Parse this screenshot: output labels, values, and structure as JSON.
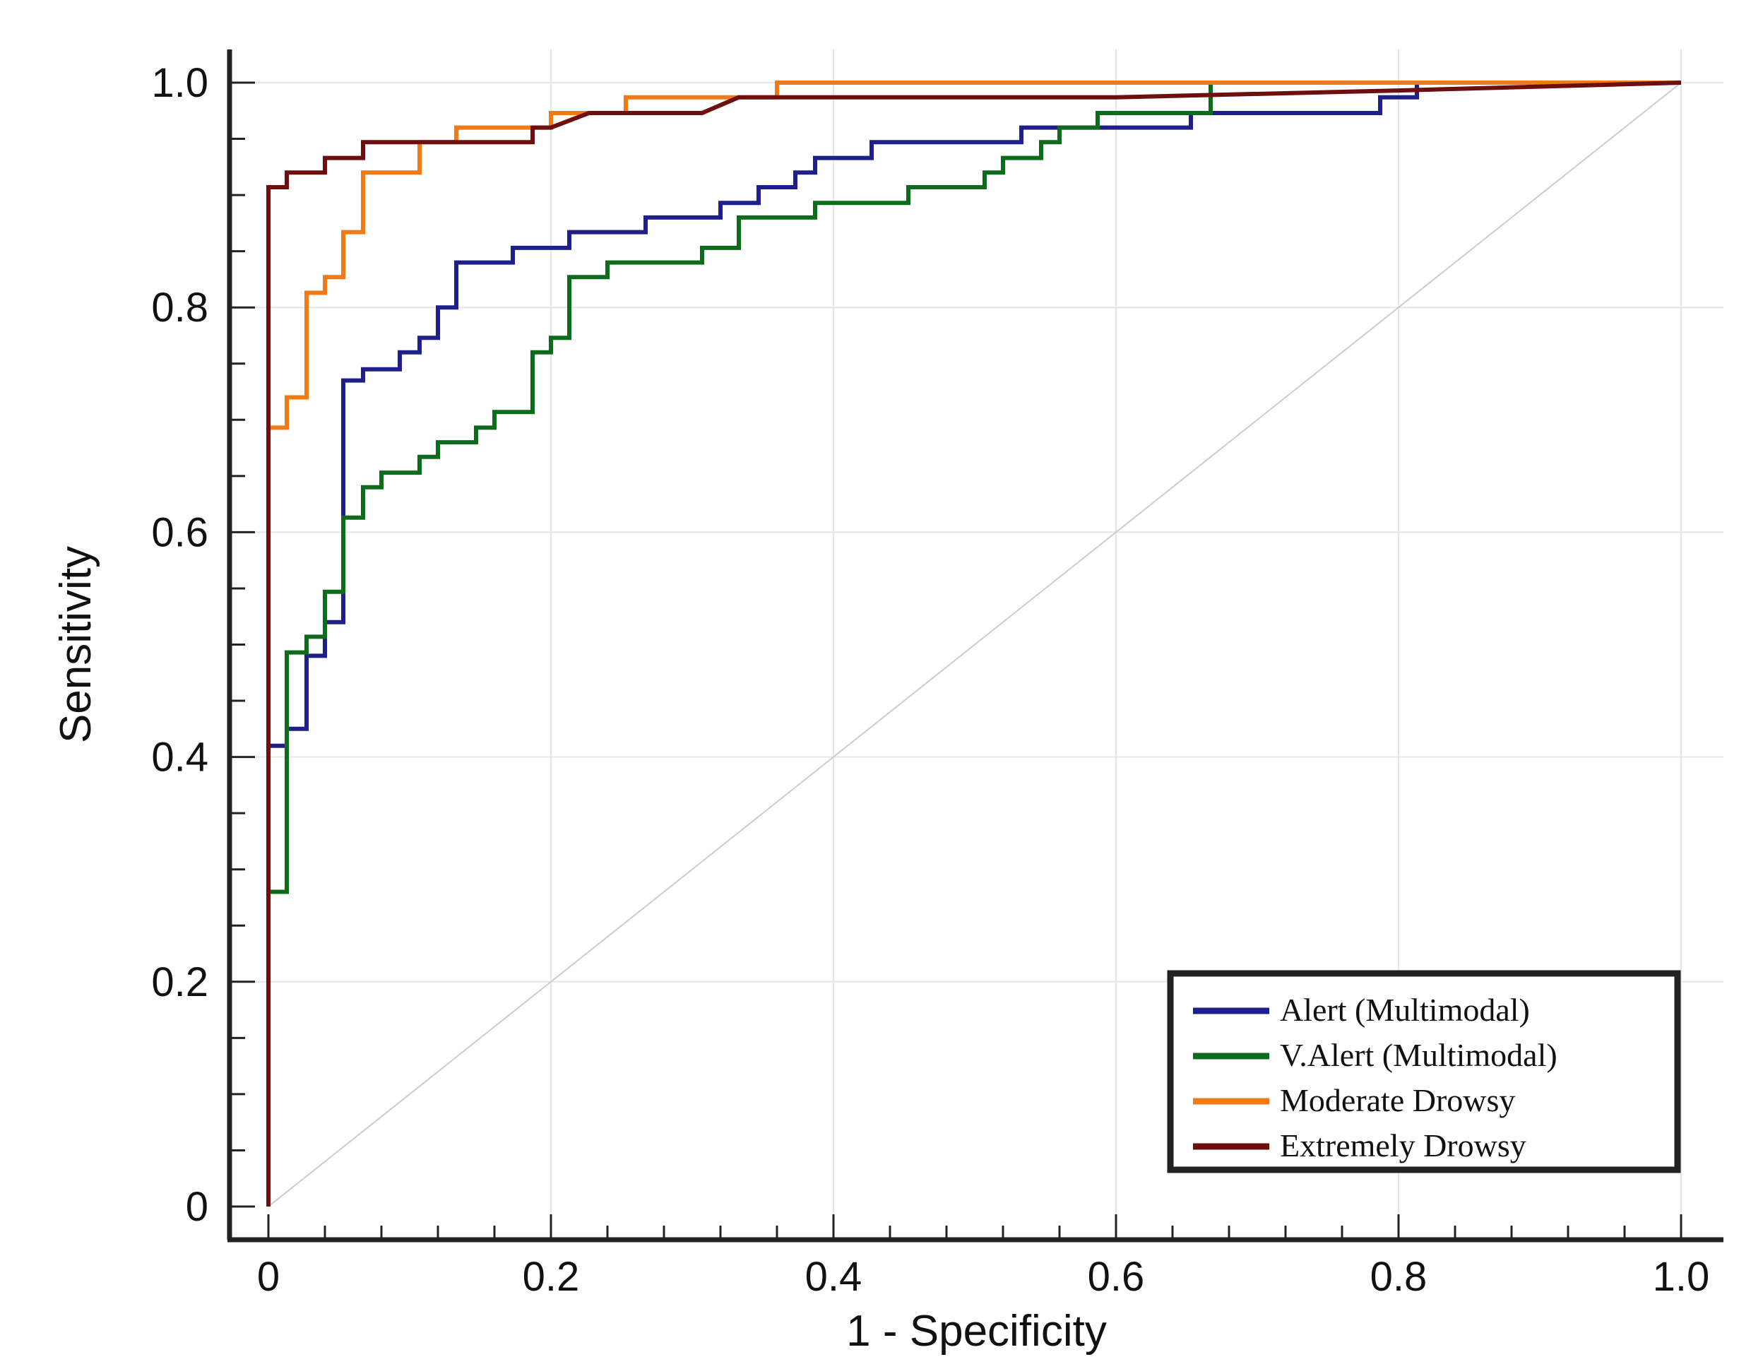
{
  "chart_data": {
    "type": "line",
    "title": "",
    "xlabel": "1 - Specificity",
    "ylabel": "Sensitivity",
    "xlim": [
      0,
      1
    ],
    "ylim": [
      0,
      1
    ],
    "grid": true,
    "x_ticks": [
      "0",
      "0.2",
      "0.4",
      "0.6",
      "0.8",
      "1.0"
    ],
    "y_ticks": [
      "0",
      "0.2",
      "0.4",
      "0.6",
      "0.8",
      "1.0"
    ],
    "legend_position": "bottom-right",
    "reference_line": {
      "name": "chance diagonal",
      "color": "#cccccc",
      "points": [
        [
          0,
          0
        ],
        [
          1,
          1
        ]
      ]
    },
    "series": [
      {
        "name": "Alert (Multimodal)",
        "color": "#1f1f8a",
        "points": [
          [
            0,
            0
          ],
          [
            0,
            0.41
          ],
          [
            0.013,
            0.41
          ],
          [
            0.013,
            0.425
          ],
          [
            0.027,
            0.425
          ],
          [
            0.027,
            0.49
          ],
          [
            0.04,
            0.49
          ],
          [
            0.04,
            0.505
          ],
          [
            0.04,
            0.52
          ],
          [
            0.053,
            0.52
          ],
          [
            0.053,
            0.735
          ],
          [
            0.067,
            0.735
          ],
          [
            0.067,
            0.745
          ],
          [
            0.093,
            0.745
          ],
          [
            0.093,
            0.76
          ],
          [
            0.107,
            0.76
          ],
          [
            0.107,
            0.773
          ],
          [
            0.12,
            0.773
          ],
          [
            0.12,
            0.8
          ],
          [
            0.133,
            0.8
          ],
          [
            0.133,
            0.84
          ],
          [
            0.173,
            0.84
          ],
          [
            0.173,
            0.853
          ],
          [
            0.213,
            0.853
          ],
          [
            0.213,
            0.867
          ],
          [
            0.267,
            0.867
          ],
          [
            0.267,
            0.88
          ],
          [
            0.32,
            0.88
          ],
          [
            0.32,
            0.893
          ],
          [
            0.347,
            0.893
          ],
          [
            0.347,
            0.907
          ],
          [
            0.373,
            0.907
          ],
          [
            0.373,
            0.92
          ],
          [
            0.387,
            0.92
          ],
          [
            0.387,
            0.933
          ],
          [
            0.427,
            0.933
          ],
          [
            0.427,
            0.947
          ],
          [
            0.533,
            0.947
          ],
          [
            0.533,
            0.96
          ],
          [
            0.653,
            0.96
          ],
          [
            0.653,
            0.973
          ],
          [
            0.787,
            0.973
          ],
          [
            0.787,
            0.987
          ],
          [
            0.813,
            0.987
          ],
          [
            0.813,
            1.0
          ],
          [
            1,
            1
          ]
        ]
      },
      {
        "name": "V.Alert (Multimodal)",
        "color": "#0e6b1e",
        "points": [
          [
            0,
            0
          ],
          [
            0,
            0.28
          ],
          [
            0.013,
            0.28
          ],
          [
            0.013,
            0.493
          ],
          [
            0.027,
            0.493
          ],
          [
            0.027,
            0.507
          ],
          [
            0.04,
            0.507
          ],
          [
            0.04,
            0.547
          ],
          [
            0.053,
            0.547
          ],
          [
            0.053,
            0.613
          ],
          [
            0.067,
            0.613
          ],
          [
            0.067,
            0.64
          ],
          [
            0.08,
            0.64
          ],
          [
            0.08,
            0.653
          ],
          [
            0.107,
            0.653
          ],
          [
            0.107,
            0.667
          ],
          [
            0.12,
            0.667
          ],
          [
            0.12,
            0.68
          ],
          [
            0.147,
            0.68
          ],
          [
            0.147,
            0.693
          ],
          [
            0.16,
            0.693
          ],
          [
            0.16,
            0.707
          ],
          [
            0.187,
            0.707
          ],
          [
            0.187,
            0.76
          ],
          [
            0.2,
            0.76
          ],
          [
            0.2,
            0.773
          ],
          [
            0.213,
            0.773
          ],
          [
            0.213,
            0.827
          ],
          [
            0.24,
            0.827
          ],
          [
            0.24,
            0.84
          ],
          [
            0.307,
            0.84
          ],
          [
            0.307,
            0.853
          ],
          [
            0.333,
            0.853
          ],
          [
            0.333,
            0.88
          ],
          [
            0.387,
            0.88
          ],
          [
            0.387,
            0.893
          ],
          [
            0.453,
            0.893
          ],
          [
            0.453,
            0.907
          ],
          [
            0.507,
            0.907
          ],
          [
            0.507,
            0.92
          ],
          [
            0.52,
            0.92
          ],
          [
            0.52,
            0.933
          ],
          [
            0.547,
            0.933
          ],
          [
            0.547,
            0.947
          ],
          [
            0.56,
            0.947
          ],
          [
            0.56,
            0.96
          ],
          [
            0.587,
            0.96
          ],
          [
            0.587,
            0.973
          ],
          [
            0.667,
            0.973
          ],
          [
            0.667,
            1.0
          ],
          [
            1,
            1
          ]
        ]
      },
      {
        "name": "Moderate Drowsy",
        "color": "#f07a16",
        "points": [
          [
            0,
            0
          ],
          [
            0,
            0.693
          ],
          [
            0.013,
            0.693
          ],
          [
            0.013,
            0.72
          ],
          [
            0.027,
            0.72
          ],
          [
            0.027,
            0.813
          ],
          [
            0.04,
            0.813
          ],
          [
            0.04,
            0.827
          ],
          [
            0.053,
            0.827
          ],
          [
            0.053,
            0.867
          ],
          [
            0.067,
            0.867
          ],
          [
            0.067,
            0.92
          ],
          [
            0.107,
            0.92
          ],
          [
            0.107,
            0.947
          ],
          [
            0.133,
            0.947
          ],
          [
            0.133,
            0.96
          ],
          [
            0.2,
            0.96
          ],
          [
            0.2,
            0.973
          ],
          [
            0.253,
            0.973
          ],
          [
            0.253,
            0.987
          ],
          [
            0.36,
            0.987
          ],
          [
            0.36,
            1.0
          ],
          [
            1,
            1
          ]
        ]
      },
      {
        "name": "Extremely Drowsy",
        "color": "#6e0e0e",
        "points": [
          [
            0,
            0
          ],
          [
            0,
            0.907
          ],
          [
            0.013,
            0.907
          ],
          [
            0.013,
            0.92
          ],
          [
            0.04,
            0.92
          ],
          [
            0.04,
            0.933
          ],
          [
            0.067,
            0.933
          ],
          [
            0.067,
            0.947
          ],
          [
            0.187,
            0.947
          ],
          [
            0.187,
            0.96
          ],
          [
            0.2,
            0.96
          ],
          [
            0.227,
            0.973
          ],
          [
            0.307,
            0.973
          ],
          [
            0.333,
            0.987
          ],
          [
            0.6,
            0.987
          ],
          [
            0.8,
            0.993
          ],
          [
            1,
            1
          ]
        ]
      }
    ]
  }
}
